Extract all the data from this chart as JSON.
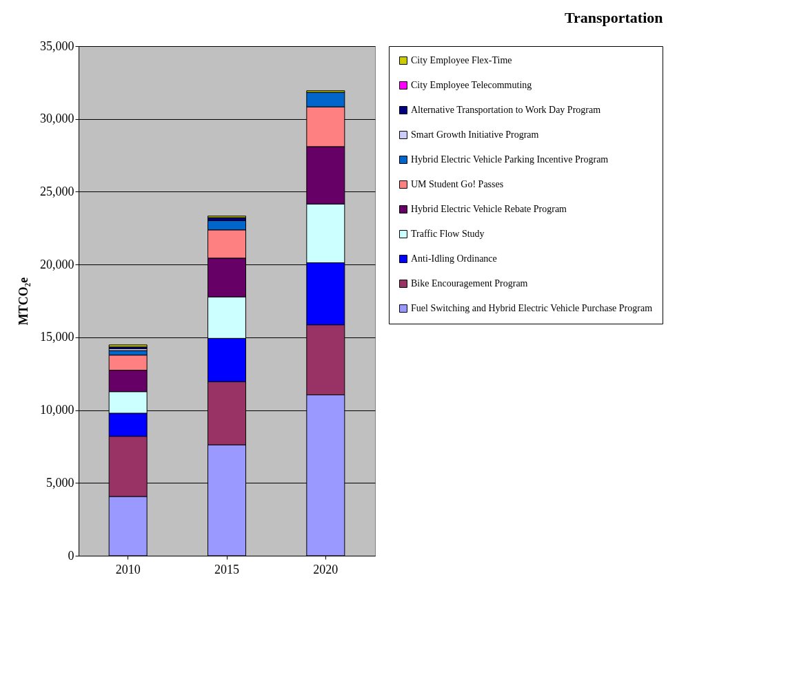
{
  "chart_data": {
    "type": "bar",
    "title": "Transportation",
    "ylabel": "MTCO₂e",
    "stacked": true,
    "categories": [
      "2010",
      "2015",
      "2020"
    ],
    "series": [
      {
        "name": "Fuel Switching and Hybrid Electric Vehicle Purchase Program",
        "color": "#9999ff",
        "values": [
          4070,
          7620,
          11050
        ]
      },
      {
        "name": "Bike Encouragement Program",
        "color": "#993366",
        "values": [
          4130,
          4340,
          4810
        ]
      },
      {
        "name": "Anti-Idling Ordinance",
        "color": "#0000ff",
        "values": [
          1590,
          2970,
          4260
        ]
      },
      {
        "name": "Traffic Flow Study",
        "color": "#ccffff",
        "values": [
          1480,
          2850,
          4040
        ]
      },
      {
        "name": "Hybrid Electric Vehicle Rebate Program",
        "color": "#660066",
        "values": [
          1470,
          2660,
          3940
        ]
      },
      {
        "name": "UM Student Go! Passes",
        "color": "#ff8080",
        "values": [
          1040,
          1940,
          2730
        ]
      },
      {
        "name": "Hybrid Electric Vehicle Parking Incentive Program",
        "color": "#0066cc",
        "values": [
          310,
          640,
          1000
        ]
      },
      {
        "name": "Smart Growth Initiative Program",
        "color": "#ccccff",
        "values": [
          130,
          null,
          null
        ]
      },
      {
        "name": "Alternative Transportation to Work Day Program",
        "color": "#000080",
        "values": [
          120,
          200,
          null
        ]
      },
      {
        "name": "City Employee Telecommuting",
        "color": "#ff00ff",
        "values": [
          null,
          null,
          null
        ]
      },
      {
        "name": "City Employee Flex-Time",
        "color": "#cccc00",
        "values": [
          140,
          110,
          110
        ]
      }
    ],
    "ylim": [
      0,
      35000
    ],
    "yticks": [
      {
        "value": 0,
        "label": "0"
      },
      {
        "value": 5000,
        "label": "5,000"
      },
      {
        "value": 10000,
        "label": "10,000"
      },
      {
        "value": 15000,
        "label": "15,000"
      },
      {
        "value": 20000,
        "label": "20,000"
      },
      {
        "value": 25000,
        "label": "25,000"
      },
      {
        "value": 30000,
        "label": "30,000"
      },
      {
        "value": 35000,
        "label": "35,000"
      }
    ],
    "grid": "y",
    "legend": "right"
  }
}
